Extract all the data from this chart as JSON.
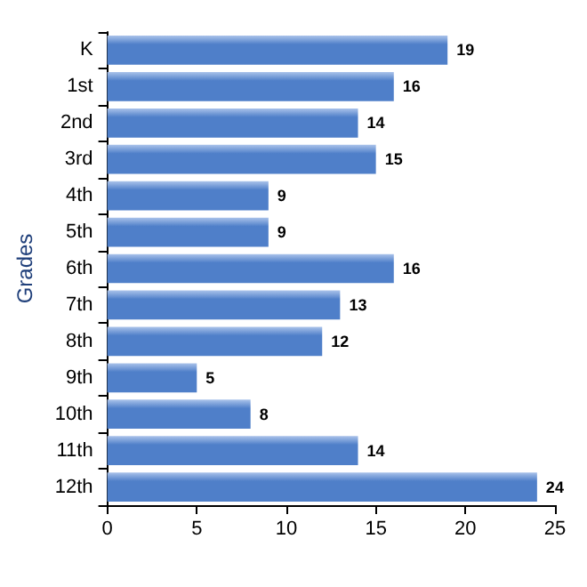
{
  "chart_data": {
    "type": "bar",
    "orientation": "horizontal",
    "ylabel": "Grades",
    "categories": [
      "K",
      "1st",
      "2nd",
      "3rd",
      "4th",
      "5th",
      "6th",
      "7th",
      "8th",
      "9th",
      "10th",
      "11th",
      "12th"
    ],
    "values": [
      19,
      16,
      14,
      15,
      9,
      9,
      16,
      13,
      12,
      5,
      8,
      14,
      24
    ],
    "color": "#4f7fc9",
    "xlim": [
      0,
      25
    ],
    "xticks": [
      0,
      5,
      10,
      15,
      20,
      25
    ],
    "data_labels": true,
    "grid": false
  }
}
